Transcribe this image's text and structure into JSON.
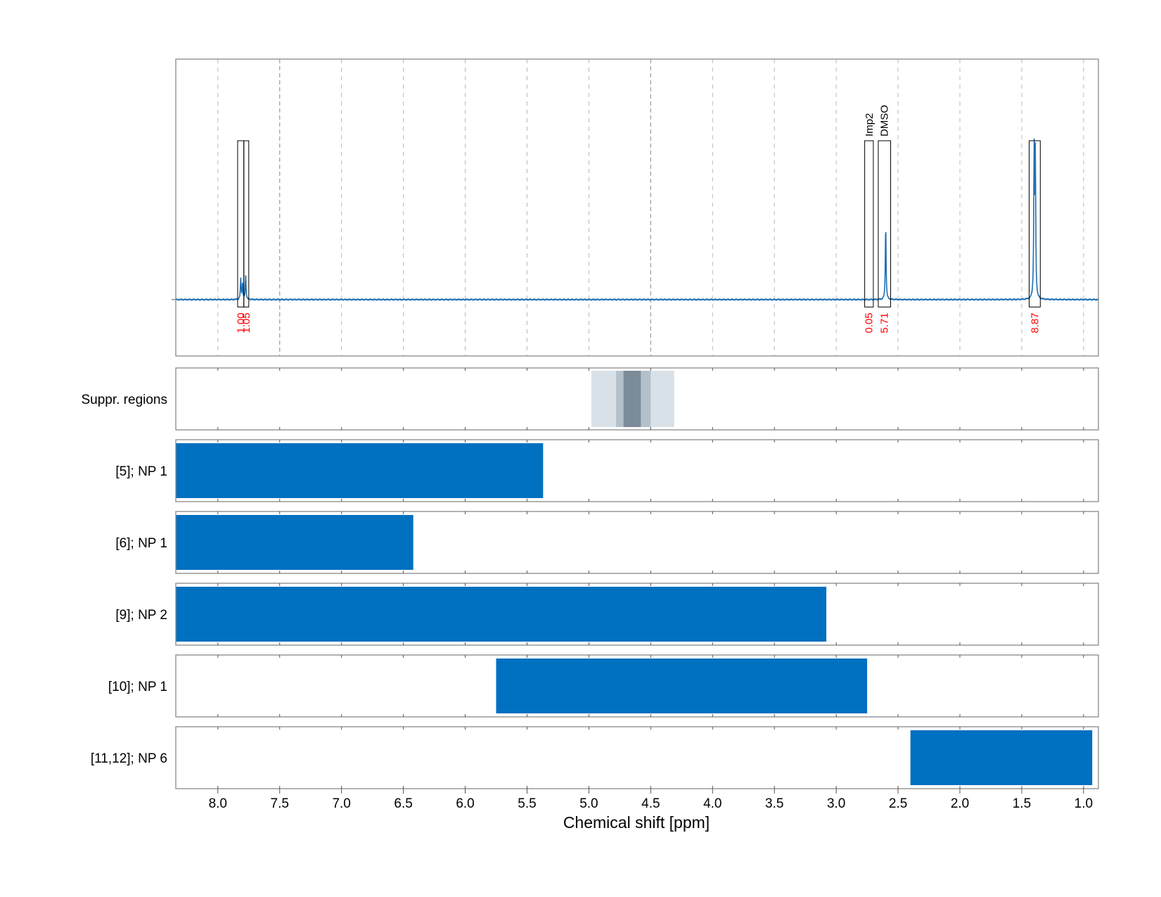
{
  "chart_data": {
    "type": "nmr_spectrum_with_range_bars",
    "xlabel": "Chemical shift [ppm]",
    "x_reversed": true,
    "xlim": [
      8.34,
      0.88
    ],
    "xticks": [
      8.0,
      7.5,
      7.0,
      6.5,
      6.0,
      5.5,
      5.0,
      4.5,
      4.0,
      3.5,
      3.0,
      2.5,
      2.0,
      1.5,
      1.0
    ],
    "xtick_labels": [
      "8.0",
      "7.5",
      "7.0",
      "6.5",
      "6.0",
      "5.5",
      "5.0",
      "4.5",
      "4.0",
      "3.5",
      "3.0",
      "2.5",
      "2.0",
      "1.5",
      "1.0"
    ],
    "grid": true,
    "colors": {
      "spectrum": "#1f6fb5",
      "bar": "#0070c0",
      "integral": "#ff0000",
      "suppr_light": "#d9e1e8",
      "suppr_mid": "#b4c1cb",
      "suppr_dark": "#7b8b97"
    },
    "spectrum": {
      "peaks": [
        {
          "ppm": 7.815,
          "height": 0.14
        },
        {
          "ppm": 7.8,
          "height": 0.11
        },
        {
          "ppm": 7.775,
          "height": 0.16
        },
        {
          "ppm": 2.6,
          "height": 0.52
        },
        {
          "ppm": 1.4,
          "height": 1.0
        },
        {
          "ppm": 1.39,
          "height": 0.97
        }
      ],
      "ylim": [
        -0.38,
        1.62
      ]
    },
    "peak_regions": [
      {
        "from": 7.84,
        "to": 7.79,
        "integral": "1.00",
        "label": ""
      },
      {
        "from": 7.79,
        "to": 7.75,
        "integral": "1.05",
        "label": ""
      },
      {
        "from": 2.77,
        "to": 2.7,
        "integral": "0.05",
        "label": "Imp2"
      },
      {
        "from": 2.66,
        "to": 2.56,
        "integral": "5.71",
        "label": "DMSO"
      },
      {
        "from": 1.44,
        "to": 1.35,
        "integral": "8.87",
        "label": ""
      }
    ],
    "suppression_regions": {
      "label": "Suppr. regions",
      "bands": [
        {
          "from": 4.98,
          "to": 4.31,
          "shade": "light"
        },
        {
          "from": 4.78,
          "to": 4.5,
          "shade": "mid"
        },
        {
          "from": 4.72,
          "to": 4.58,
          "shade": "dark"
        }
      ]
    },
    "range_bars": [
      {
        "label": "[5]; NP 1",
        "from": 8.34,
        "to": 5.37
      },
      {
        "label": "[6]; NP 1",
        "from": 8.34,
        "to": 6.42
      },
      {
        "label": "[9]; NP 2",
        "from": 8.34,
        "to": 3.08
      },
      {
        "label": "[10]; NP 1",
        "from": 5.75,
        "to": 2.75
      },
      {
        "label": "[11,12]; NP 6",
        "from": 2.4,
        "to": 0.93
      }
    ]
  }
}
